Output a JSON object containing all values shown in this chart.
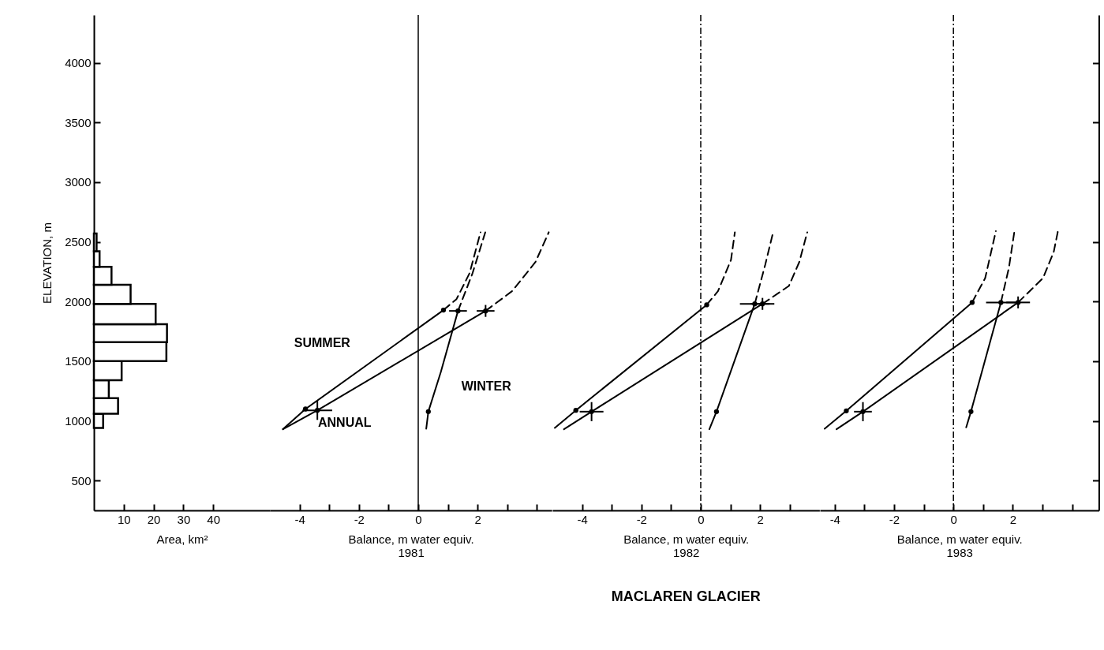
{
  "chart_data": [
    {
      "type": "histogram",
      "orientation": "horizontal",
      "xlabel": "Area, km²",
      "ylabel": "ELEVATION, m",
      "color": "#ffffff",
      "bins": [
        940,
        1060,
        1190,
        1340,
        1500,
        1660,
        1810,
        1980,
        2140,
        2290,
        2420,
        2570
      ],
      "values": [
        3.1,
        8.1,
        5.0,
        9.3,
        24.3,
        24.5,
        20.7,
        12.3,
        5.9,
        1.9,
        0.9
      ],
      "xlim": [
        0,
        59
      ],
      "xticks": [
        10,
        20,
        30,
        40
      ],
      "ylim": [
        250,
        4400
      ],
      "yticks": [
        500,
        1000,
        1500,
        2000,
        2500,
        3000,
        3500,
        4000
      ]
    },
    {
      "type": "line",
      "xlabel": "Balance, m water equiv.\n1981",
      "xlim": [
        -5,
        4.5
      ],
      "xticks": [
        -4,
        {
          "value": -3,
          "label": null
        },
        -2,
        {
          "value": -1,
          "label": null
        },
        0,
        {
          "value": 1,
          "label": null
        },
        2,
        {
          "value": 3,
          "label": null
        },
        {
          "value": 4,
          "label": null
        }
      ],
      "ylim": [
        250,
        4400
      ],
      "tick_labels": "x",
      "ref_lines": [
        {
          "axis": "x",
          "value": 0,
          "line_style": "solid"
        }
      ],
      "series": [
        {
          "name": "SUMMER",
          "color": "#000000",
          "line_style": "solid",
          "x": [
            -4.56,
            -3.8,
            0.85
          ],
          "values": [
            930,
            1099,
            1928
          ]
        },
        {
          "color": "#000000",
          "line_style": "dashed",
          "x": [
            0.85,
            1.29,
            1.73,
            2.1
          ],
          "values": [
            1928,
            2020,
            2237,
            2580
          ]
        },
        {
          "name": "ANNUAL",
          "color": "#000000",
          "line_style": "solid",
          "x": [
            -4.56,
            -3.4,
            2.27
          ],
          "values": [
            930,
            1088,
            1921
          ]
        },
        {
          "color": "#000000",
          "line_style": "dashed",
          "x": [
            2.27,
            3.16,
            3.95,
            4.4
          ],
          "values": [
            1921,
            2086,
            2330,
            2580
          ]
        },
        {
          "name": "WINTER",
          "color": "#000000",
          "line_style": "solid",
          "x": [
            0.27,
            0.34,
            0.76,
            1.34
          ],
          "values": [
            934,
            1077,
            1408,
            1921
          ]
        },
        {
          "color": "#000000",
          "line_style": "dashed",
          "x": [
            1.34,
            1.83,
            2.26
          ],
          "values": [
            1921,
            2237,
            2580
          ]
        },
        {
          "type": "scatter",
          "marker": "circle",
          "color": "#000000",
          "x": [
            -3.8,
            -3.4,
            0.85,
            2.27,
            0.34,
            1.34
          ],
          "values": [
            1099,
            1088,
            1928,
            1921,
            1077,
            1921
          ],
          "xerrors": [
            null,
            0.5,
            null,
            0.3,
            null,
            0.3
          ],
          "errors": [
            null,
            80,
            null,
            50,
            null,
            null
          ]
        }
      ]
    },
    {
      "type": "line",
      "title": "MACLAREN GLACIER",
      "xlabel": "Balance, m water equiv.\n1982",
      "xlim": [
        -5,
        4
      ],
      "xticks": [
        -4,
        {
          "value": -3,
          "label": null
        },
        -2,
        {
          "value": -1,
          "label": null
        },
        0,
        {
          "value": 1,
          "label": null
        },
        2,
        {
          "value": 3,
          "label": null
        }
      ],
      "ylim": [
        250,
        4400
      ],
      "tick_labels": "x",
      "ref_lines": [
        {
          "axis": "x",
          "value": 0,
          "line_style": "dashdot"
        }
      ],
      "series": [
        {
          "color": "#000000",
          "line_style": "solid",
          "x": [
            -4.92,
            -4.21,
            0.2
          ],
          "values": [
            941,
            1088,
            1972
          ]
        },
        {
          "color": "#000000",
          "line_style": "dashed",
          "x": [
            0.2,
            0.58,
            1.02,
            1.15
          ],
          "values": [
            1972,
            2086,
            2349,
            2580
          ]
        },
        {
          "color": "#000000",
          "line_style": "solid",
          "x": [
            -4.61,
            -3.68,
            2.08
          ],
          "values": [
            930,
            1077,
            1980
          ]
        },
        {
          "color": "#000000",
          "line_style": "dashed",
          "x": [
            2.08,
            2.97,
            3.32,
            3.59
          ],
          "values": [
            1980,
            2130,
            2330,
            2580
          ]
        },
        {
          "color": "#000000",
          "line_style": "solid",
          "x": [
            0.29,
            0.53,
            1.82
          ],
          "values": [
            930,
            1077,
            1980
          ]
        },
        {
          "color": "#000000",
          "line_style": "dashed",
          "x": [
            1.82,
            2.17,
            2.44
          ],
          "values": [
            1980,
            2305,
            2580
          ]
        },
        {
          "type": "scatter",
          "marker": "circle",
          "color": "#000000",
          "x": [
            -4.21,
            -3.68,
            0.2,
            2.08,
            0.53,
            1.82
          ],
          "values": [
            1088,
            1077,
            1972,
            1980,
            1077,
            1980
          ],
          "xerrors": [
            null,
            0.4,
            null,
            0.4,
            null,
            0.5
          ],
          "errors": [
            null,
            80,
            null,
            50,
            null,
            null
          ]
        }
      ]
    },
    {
      "type": "line",
      "xlabel": "Balance, m water equiv.\n1983",
      "xlim": [
        -4.5,
        4.9
      ],
      "xticks": [
        -4,
        {
          "value": -3,
          "label": null
        },
        -2,
        {
          "value": -1,
          "label": null
        },
        0,
        {
          "value": 1,
          "label": null
        },
        2,
        {
          "value": 3,
          "label": null
        },
        {
          "value": 4,
          "label": null
        }
      ],
      "ylim": [
        250,
        4400
      ],
      "yticks": [
        {
          "value": 500,
          "label": null
        },
        {
          "value": 1000,
          "label": null
        },
        {
          "value": 1500,
          "label": null
        },
        {
          "value": 2000,
          "label": null
        },
        {
          "value": 2500,
          "label": null
        },
        {
          "value": 3000,
          "label": null
        },
        {
          "value": 3500,
          "label": null
        },
        {
          "value": 4000,
          "label": null
        }
      ],
      "tick_labels": "x",
      "ref_lines": [
        {
          "axis": "x",
          "value": 0,
          "line_style": "dashdot"
        }
      ],
      "series": [
        {
          "color": "#000000",
          "line_style": "solid",
          "x": [
            -4.34,
            -3.61,
            0.63
          ],
          "values": [
            934,
            1084,
            1992
          ]
        },
        {
          "color": "#000000",
          "line_style": "dashed",
          "x": [
            0.63,
            1.07,
            1.43
          ],
          "values": [
            1992,
            2196,
            2590
          ]
        },
        {
          "color": "#000000",
          "line_style": "solid",
          "x": [
            -3.94,
            -3.05,
            2.18
          ],
          "values": [
            930,
            1077,
            1992
          ]
        },
        {
          "color": "#000000",
          "line_style": "dashed",
          "x": [
            2.18,
            3.02,
            3.38,
            3.54
          ],
          "values": [
            1992,
            2196,
            2415,
            2612
          ]
        },
        {
          "color": "#000000",
          "line_style": "solid",
          "x": [
            0.43,
            0.59,
            1.6
          ],
          "values": [
            945,
            1077,
            1992
          ]
        },
        {
          "color": "#000000",
          "line_style": "dashed",
          "x": [
            1.6,
            1.87,
            2.07
          ],
          "values": [
            1992,
            2283,
            2612
          ]
        },
        {
          "type": "scatter",
          "marker": "circle",
          "color": "#000000",
          "x": [
            -3.61,
            -3.05,
            0.63,
            2.18,
            0.59,
            1.6
          ],
          "values": [
            1084,
            1077,
            1992,
            1992,
            1077,
            1992
          ],
          "xerrors": [
            null,
            0.3,
            null,
            0.4,
            null,
            0.5
          ],
          "errors": [
            null,
            80,
            null,
            50,
            null,
            null
          ]
        }
      ]
    }
  ]
}
